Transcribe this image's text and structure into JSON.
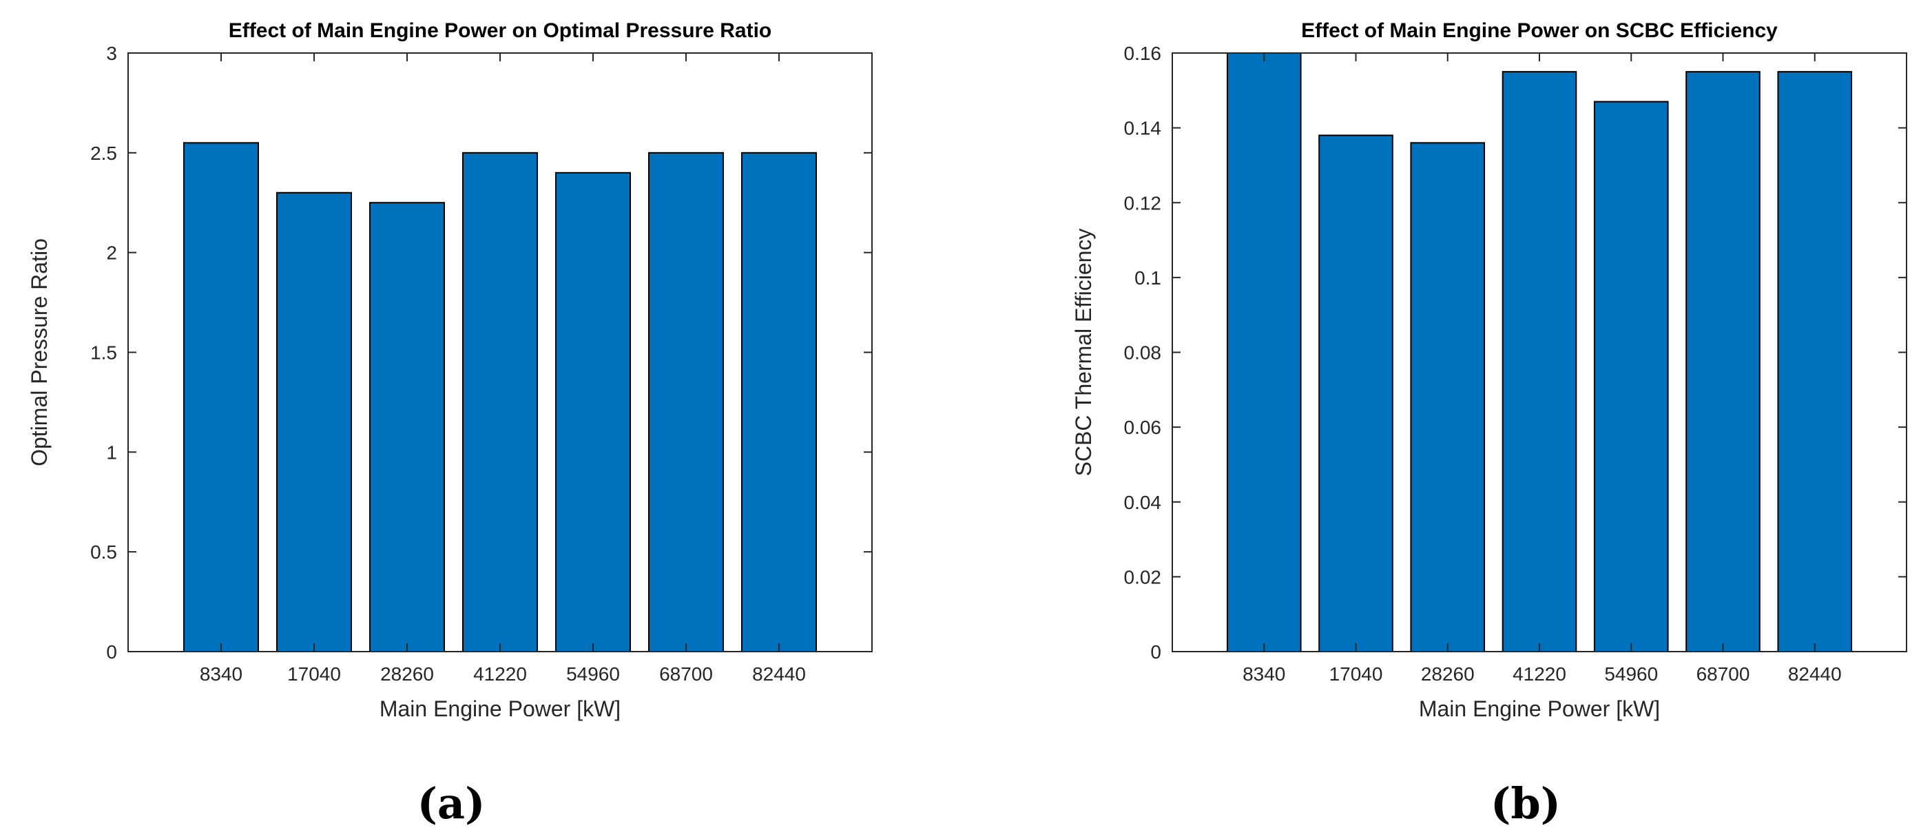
{
  "chart_data": [
    {
      "type": "bar",
      "panel_label": "(a)",
      "title": "Effect of Main Engine Power on Optimal Pressure Ratio",
      "xlabel": "Main Engine Power [kW]",
      "ylabel": "Optimal Pressure Ratio",
      "categories": [
        "8340",
        "17040",
        "28260",
        "41220",
        "54960",
        "68700",
        "82440"
      ],
      "values": [
        2.55,
        2.3,
        2.25,
        2.5,
        2.4,
        2.5,
        2.5
      ],
      "ylim": [
        0,
        3
      ],
      "yticks": [
        0,
        0.5,
        1,
        1.5,
        2,
        2.5,
        3
      ],
      "ytick_labels": [
        "0",
        "0.5",
        "1",
        "1.5",
        "2",
        "2.5",
        "3"
      ],
      "grid": false,
      "bar_color": "#0072BD"
    },
    {
      "type": "bar",
      "panel_label": "(b)",
      "title": "Effect of Main Engine Power on SCBC Efficiency",
      "xlabel": "Main Engine Power [kW]",
      "ylabel": "SCBC Thermal Efficiency",
      "categories": [
        "8340",
        "17040",
        "28260",
        "41220",
        "54960",
        "68700",
        "82440"
      ],
      "values": [
        0.16,
        0.138,
        0.136,
        0.155,
        0.147,
        0.155,
        0.155
      ],
      "ylim": [
        0,
        0.16
      ],
      "yticks": [
        0,
        0.02,
        0.04,
        0.06,
        0.08,
        0.1,
        0.12,
        0.14,
        0.16
      ],
      "ytick_labels": [
        "0",
        "0.02",
        "0.04",
        "0.06",
        "0.08",
        "0.1",
        "0.12",
        "0.14",
        "0.16"
      ],
      "grid": false,
      "bar_color": "#0072BD"
    }
  ]
}
